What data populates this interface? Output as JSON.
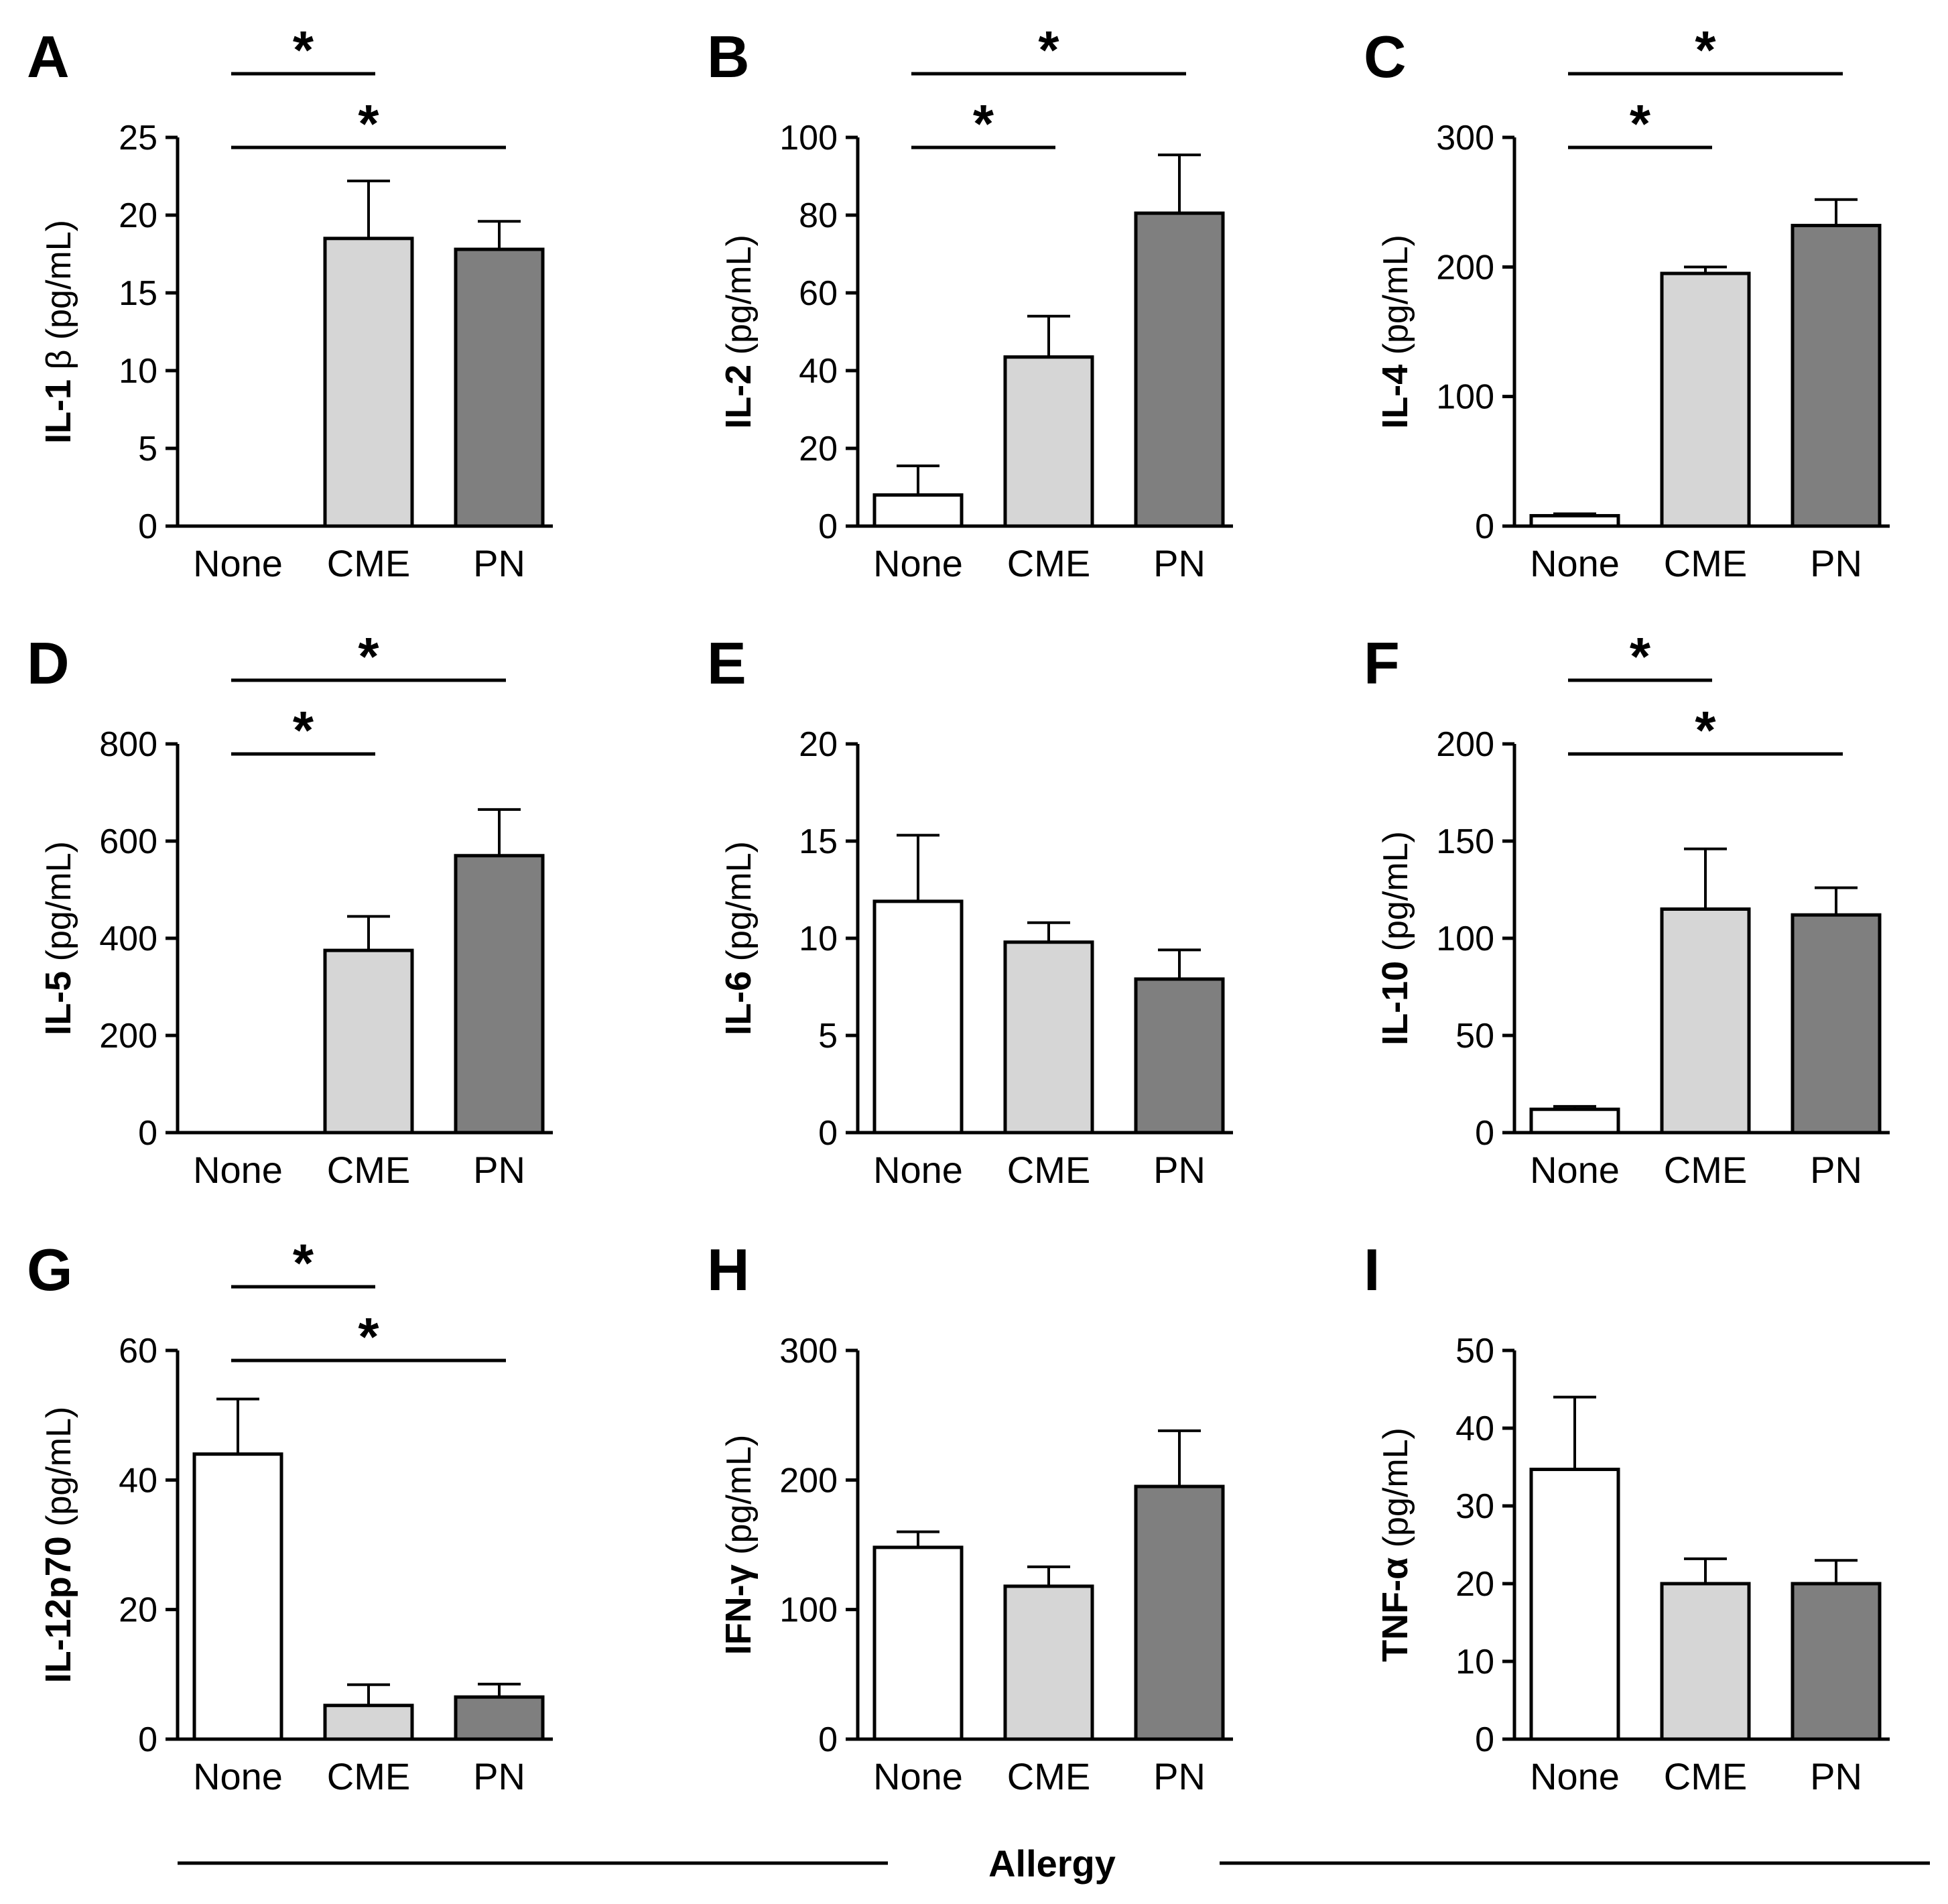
{
  "figure": {
    "footer_label": "Allergy",
    "bar_colors": [
      "#ffffff",
      "#d6d6d6",
      "#7f7f7f"
    ],
    "significance_marker": "*"
  },
  "chart_data": [
    {
      "type": "bar",
      "panel": "A",
      "ylabel_main": "IL-1",
      "ylabel_unit": " β (pg/mL)",
      "categories": [
        "None",
        "CME",
        "PN"
      ],
      "values": [
        0,
        18.5,
        17.8
      ],
      "errors": [
        0,
        3.7,
        1.8
      ],
      "ylim": [
        0,
        25
      ],
      "yticks": [
        0,
        5,
        10,
        15,
        20,
        25
      ],
      "significance": [
        {
          "from": 0,
          "to": 1,
          "label": "*"
        },
        {
          "from": 0,
          "to": 2,
          "label": "*"
        }
      ]
    },
    {
      "type": "bar",
      "panel": "B",
      "ylabel_main": "IL-2",
      "ylabel_unit": " (pg/mL)",
      "categories": [
        "None",
        "CME",
        "PN"
      ],
      "values": [
        8,
        43.5,
        80.5
      ],
      "errors": [
        7.5,
        10.5,
        15
      ],
      "ylim": [
        0,
        100
      ],
      "yticks": [
        0,
        20,
        40,
        60,
        80,
        100
      ],
      "significance": [
        {
          "from": 0,
          "to": 1,
          "label": "*"
        },
        {
          "from": 0,
          "to": 2,
          "label": "*"
        }
      ]
    },
    {
      "type": "bar",
      "panel": "C",
      "ylabel_main": "IL-4",
      "ylabel_unit": " (pg/mL)",
      "categories": [
        "None",
        "CME",
        "PN"
      ],
      "values": [
        8,
        195,
        232
      ],
      "errors": [
        1.5,
        5,
        20
      ],
      "ylim": [
        0,
        300
      ],
      "yticks": [
        0,
        100,
        200,
        300
      ],
      "significance": [
        {
          "from": 0,
          "to": 1,
          "label": "*"
        },
        {
          "from": 0,
          "to": 2,
          "label": "*"
        }
      ]
    },
    {
      "type": "bar",
      "panel": "D",
      "ylabel_main": "IL-5",
      "ylabel_unit": " (pg/mL)",
      "categories": [
        "None",
        "CME",
        "PN"
      ],
      "values": [
        0,
        375,
        570
      ],
      "errors": [
        0,
        70,
        95
      ],
      "ylim": [
        0,
        800
      ],
      "yticks": [
        0,
        200,
        400,
        600,
        800
      ],
      "significance": [
        {
          "from": 0,
          "to": 1,
          "label": "*"
        },
        {
          "from": 0,
          "to": 2,
          "label": "*"
        }
      ]
    },
    {
      "type": "bar",
      "panel": "E",
      "ylabel_main": "IL-6",
      "ylabel_unit": " (pg/mL)",
      "categories": [
        "None",
        "CME",
        "PN"
      ],
      "values": [
        11.9,
        9.8,
        7.9
      ],
      "errors": [
        3.4,
        1.0,
        1.5
      ],
      "ylim": [
        0,
        20
      ],
      "yticks": [
        0,
        5,
        10,
        15,
        20
      ],
      "significance": []
    },
    {
      "type": "bar",
      "panel": "F",
      "ylabel_main": "IL-10",
      "ylabel_unit": " (pg/mL)",
      "categories": [
        "None",
        "CME",
        "PN"
      ],
      "values": [
        12,
        115,
        112
      ],
      "errors": [
        1.5,
        31,
        14
      ],
      "ylim": [
        0,
        200
      ],
      "yticks": [
        0,
        50,
        100,
        150,
        200
      ],
      "significance": [
        {
          "from": 0,
          "to": 1,
          "label": "*"
        },
        {
          "from": 0,
          "to": 2,
          "label": "*"
        }
      ]
    },
    {
      "type": "bar",
      "panel": "G",
      "ylabel_main": "IL-12p70",
      "ylabel_unit": " (pg/mL)",
      "categories": [
        "None",
        "CME",
        "PN"
      ],
      "values": [
        44,
        5.2,
        6.5
      ],
      "errors": [
        8.5,
        3.2,
        2.0
      ],
      "ylim": [
        0,
        60
      ],
      "yticks": [
        0,
        20,
        40,
        60
      ],
      "significance": [
        {
          "from": 0,
          "to": 1,
          "label": "*"
        },
        {
          "from": 0,
          "to": 2,
          "label": "*"
        }
      ]
    },
    {
      "type": "bar",
      "panel": "H",
      "ylabel_main": "IFN-γ",
      "ylabel_unit": " (pg/mL)",
      "categories": [
        "None",
        "CME",
        "PN"
      ],
      "values": [
        148,
        118,
        195
      ],
      "errors": [
        12,
        15,
        43
      ],
      "ylim": [
        0,
        300
      ],
      "yticks": [
        0,
        100,
        200,
        300
      ],
      "significance": []
    },
    {
      "type": "bar",
      "panel": "I",
      "ylabel_main": "TNF-α",
      "ylabel_unit": " (pg/mL)",
      "categories": [
        "None",
        "CME",
        "PN"
      ],
      "values": [
        34.7,
        20,
        20
      ],
      "errors": [
        9.3,
        3.2,
        3.0
      ],
      "ylim": [
        0,
        50
      ],
      "yticks": [
        0,
        10,
        20,
        30,
        40,
        50
      ],
      "significance": []
    }
  ]
}
